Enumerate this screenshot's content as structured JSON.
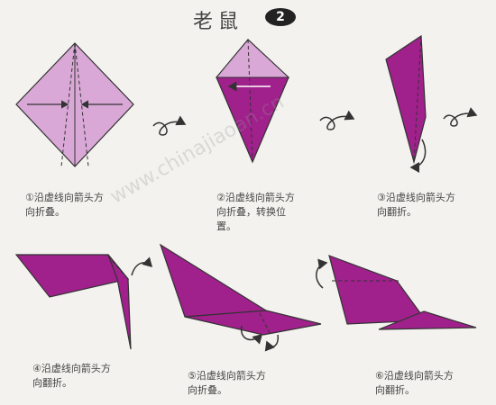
{
  "header": {
    "title": "老鼠",
    "step_number": "2"
  },
  "watermark": "www.chinajiaoan.cn",
  "colors": {
    "magenta": "#a0208c",
    "light_pink": "#d9a8d6",
    "line": "#333333",
    "background": "#f3f2ee"
  },
  "steps": [
    {
      "number": "①",
      "line1": "沿虚线向箭头方",
      "line2": "向折叠。",
      "line3": ""
    },
    {
      "number": "②",
      "line1": "沿虚线向箭头方",
      "line2": "向折叠，转换位",
      "line3": "置。"
    },
    {
      "number": "③",
      "line1": "沿虚线向箭头方",
      "line2": "向翻折。",
      "line3": ""
    },
    {
      "number": "④",
      "line1": "沿虚线向箭头方",
      "line2": "向翻折。",
      "line3": ""
    },
    {
      "number": "⑤",
      "line1": "沿虚线向箭头方",
      "line2": "向折叠。",
      "line3": ""
    },
    {
      "number": "⑥",
      "line1": "沿虚线向箭头方",
      "line2": "向翻折。",
      "line3": ""
    }
  ]
}
